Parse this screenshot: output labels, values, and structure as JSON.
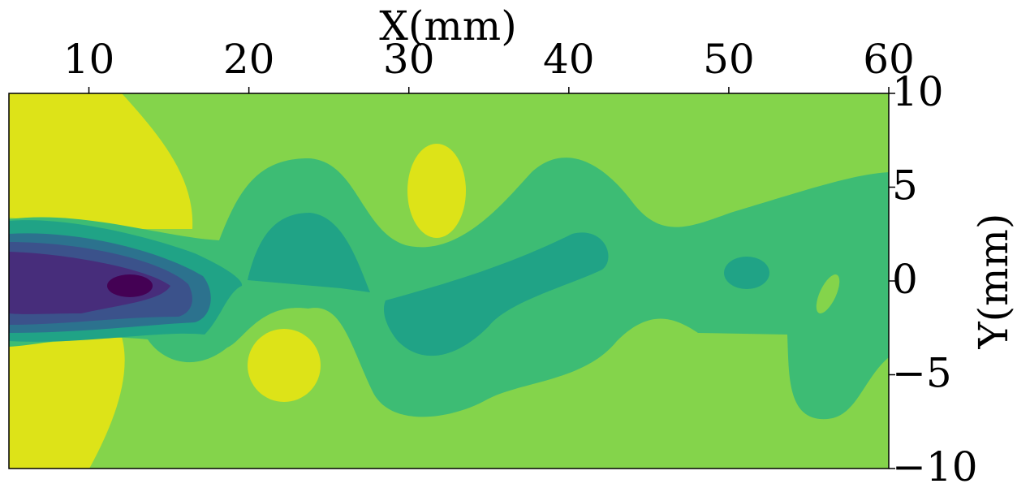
{
  "chart_data": {
    "type": "contour",
    "xlabel": "X(mm)",
    "ylabel": "Y(mm)",
    "xlim": [
      5,
      60
    ],
    "xticks": [
      10,
      20,
      30,
      40,
      50,
      60
    ],
    "ylim": [
      -10,
      10
    ],
    "yticks": [
      10,
      5,
      0,
      {
        "value": -5,
        "label": "−5"
      },
      {
        "value": -10,
        "label": "−10"
      }
    ],
    "colors": [
      "#84d44b",
      "#dde318",
      "#3dbc74",
      "#20a386",
      "#2c728e",
      "#3b528b",
      "#472d7b",
      "#440154"
    ]
  }
}
